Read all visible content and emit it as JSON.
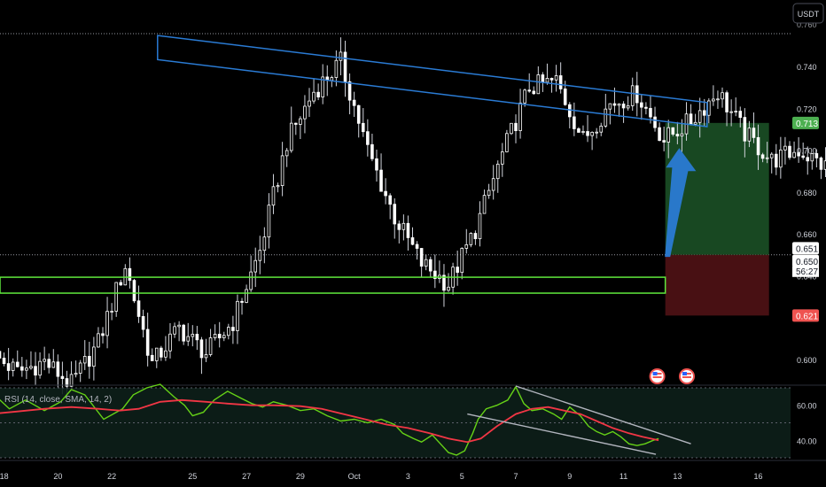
{
  "currency_button": "USDT",
  "chart_data": [
    {
      "type": "candlestick",
      "quote_currency": "USDT",
      "y_ticks": [
        0.6,
        0.62,
        0.64,
        0.66,
        0.68,
        0.7,
        0.72,
        0.74
      ],
      "y_tick_labels": [
        "0.600",
        "0.620",
        "0.640",
        "0.660",
        "0.680",
        "0.700",
        "0.720",
        "0.740"
      ],
      "top_tick_label": "0.760",
      "ylim": [
        0.589,
        0.767
      ],
      "x_ticks": [
        {
          "label": "18",
          "day": 18
        },
        {
          "label": "20",
          "day": 20
        },
        {
          "label": "22",
          "day": 22
        },
        {
          "label": "25",
          "day": 25
        },
        {
          "label": "27",
          "day": 27
        },
        {
          "label": "29",
          "day": 29
        },
        {
          "label": "Oct",
          "day": 31
        },
        {
          "label": "3",
          "day": 33
        },
        {
          "label": "5",
          "day": 35
        },
        {
          "label": "7",
          "day": 37
        },
        {
          "label": "9",
          "day": 39
        },
        {
          "label": "11",
          "day": 41
        },
        {
          "label": "13",
          "day": 43
        },
        {
          "label": "16",
          "day": 46
        }
      ],
      "xlim": [
        17.85,
        47.2
      ],
      "candles_per_day": 6,
      "start_day": 17.5,
      "candle_anchors": [
        [
          0,
          0.603
        ],
        [
          6,
          0.594
        ],
        [
          12,
          0.599
        ],
        [
          18,
          0.588
        ],
        [
          24,
          0.608
        ],
        [
          30,
          0.645
        ],
        [
          36,
          0.598
        ],
        [
          42,
          0.615
        ],
        [
          48,
          0.603
        ],
        [
          54,
          0.618
        ],
        [
          60,
          0.652
        ],
        [
          66,
          0.704
        ],
        [
          72,
          0.728
        ],
        [
          78,
          0.742
        ],
        [
          84,
          0.7
        ],
        [
          90,
          0.668
        ],
        [
          96,
          0.646
        ],
        [
          102,
          0.636
        ],
        [
          108,
          0.662
        ],
        [
          114,
          0.698
        ],
        [
          120,
          0.73
        ],
        [
          126,
          0.733
        ],
        [
          132,
          0.705
        ],
        [
          138,
          0.722
        ],
        [
          144,
          0.727
        ],
        [
          150,
          0.705
        ],
        [
          156,
          0.714
        ],
        [
          162,
          0.728
        ],
        [
          168,
          0.708
        ],
        [
          174,
          0.695
        ],
        [
          180,
          0.7
        ],
        [
          186,
          0.692
        ],
        [
          192,
          0.686
        ],
        [
          198,
          0.7
        ],
        [
          204,
          0.68
        ],
        [
          210,
          0.662
        ],
        [
          216,
          0.655
        ],
        [
          222,
          0.643
        ],
        [
          228,
          0.637
        ],
        [
          234,
          0.642
        ],
        [
          240,
          0.637
        ],
        [
          246,
          0.656
        ],
        [
          252,
          0.688
        ],
        [
          258,
          0.716
        ],
        [
          264,
          0.726
        ],
        [
          270,
          0.703
        ],
        [
          276,
          0.708
        ],
        [
          282,
          0.704
        ],
        [
          288,
          0.68
        ],
        [
          294,
          0.708
        ],
        [
          300,
          0.7
        ],
        [
          306,
          0.682
        ],
        [
          312,
          0.668
        ],
        [
          318,
          0.66
        ],
        [
          324,
          0.656
        ],
        [
          330,
          0.648
        ],
        [
          336,
          0.645
        ],
        [
          342,
          0.65
        ]
      ],
      "last_price": 0.65,
      "countdown": "56:27",
      "price_markers": [
        {
          "label": "0.713",
          "value": 0.713,
          "color": "#4caf50"
        },
        {
          "label": "0.651",
          "value": 0.651,
          "color": "#ffffff"
        },
        {
          "label": "0.650",
          "value": 0.65,
          "color": "#ffffff"
        },
        {
          "label": "0.621",
          "value": 0.621,
          "color": "#ef5350"
        }
      ],
      "drawings": {
        "resistance_channel": {
          "start": {
            "day": 23.7,
            "price": 0.749
          },
          "end": {
            "day": 44.1,
            "price": 0.717
          },
          "width_price": 0.0115,
          "color": "#2a7bd4"
        },
        "support_zone": {
          "start_day": 17.85,
          "end_day": 42.55,
          "price_high": 0.6393,
          "price_low": 0.6317,
          "color": "#5fe83d"
        },
        "long_position": {
          "start_day": 42.55,
          "end_day": 46.4,
          "entry": 0.65,
          "target": 0.713,
          "stop": 0.621
        },
        "arrow": {
          "from": {
            "day": 42.6,
            "price": 0.649
          },
          "to": {
            "day": 43.1,
            "price": 0.701
          },
          "color": "#2a7bd4"
        }
      },
      "event_icons": [
        {
          "day": 42.25
        },
        {
          "day": 43.35
        }
      ]
    },
    {
      "type": "line",
      "indicator": "RSI",
      "legend": "RSI (14, close, SMA, 14, 2)",
      "y_ticks": [
        40,
        60
      ],
      "y_tick_labels": [
        "40.00",
        "60.00"
      ],
      "ylim": [
        29.5,
        71
      ],
      "bands": {
        "upper": 70,
        "middle": 50,
        "lower": 30
      },
      "series": [
        {
          "key": "rsi",
          "color": "#66d217",
          "points": [
            [
              17.5,
              68
            ],
            [
              18.2,
              58
            ],
            [
              18.8,
              63
            ],
            [
              19.5,
              57
            ],
            [
              20.1,
              62
            ],
            [
              20.5,
              69
            ],
            [
              21.0,
              66
            ],
            [
              21.7,
              52
            ],
            [
              22.4,
              58
            ],
            [
              22.8,
              66
            ],
            [
              23.3,
              70
            ],
            [
              23.8,
              72
            ],
            [
              24.3,
              65
            ],
            [
              24.7,
              60
            ],
            [
              25.0,
              54
            ],
            [
              25.4,
              56
            ],
            [
              25.8,
              63
            ],
            [
              26.3,
              68
            ],
            [
              26.8,
              64
            ],
            [
              27.2,
              61
            ],
            [
              27.6,
              59
            ],
            [
              28.0,
              62
            ],
            [
              28.5,
              60
            ],
            [
              29.0,
              57
            ],
            [
              29.5,
              58
            ],
            [
              30.0,
              54
            ],
            [
              30.5,
              51
            ],
            [
              31.0,
              52
            ],
            [
              31.5,
              50
            ],
            [
              32.0,
              52
            ],
            [
              32.5,
              49
            ],
            [
              32.8,
              44
            ],
            [
              33.2,
              41
            ],
            [
              33.5,
              39
            ],
            [
              33.9,
              43
            ],
            [
              34.2,
              38
            ],
            [
              34.5,
              33
            ],
            [
              34.8,
              31.5
            ],
            [
              35.1,
              34
            ],
            [
              35.4,
              44
            ],
            [
              35.6,
              52
            ],
            [
              35.9,
              58
            ],
            [
              36.3,
              60
            ],
            [
              36.7,
              63
            ],
            [
              37.0,
              70.5
            ],
            [
              37.3,
              61
            ],
            [
              37.6,
              57
            ],
            [
              38.0,
              58
            ],
            [
              38.4,
              55
            ],
            [
              38.7,
              52
            ],
            [
              39.0,
              59
            ],
            [
              39.4,
              54
            ],
            [
              39.7,
              48
            ],
            [
              40.0,
              45
            ],
            [
              40.3,
              43
            ],
            [
              40.6,
              45
            ],
            [
              40.9,
              42
            ],
            [
              41.2,
              38
            ],
            [
              41.5,
              37
            ],
            [
              41.8,
              38
            ],
            [
              42.1,
              40
            ],
            [
              42.3,
              41
            ]
          ]
        },
        {
          "key": "rsi_ma",
          "color": "#f23645",
          "points": [
            [
              17.5,
              55
            ],
            [
              18.5,
              56.5
            ],
            [
              19.5,
              58
            ],
            [
              20.5,
              59
            ],
            [
              21.5,
              58
            ],
            [
              22.3,
              57
            ],
            [
              23.0,
              58
            ],
            [
              23.8,
              62
            ],
            [
              24.6,
              63
            ],
            [
              25.5,
              62
            ],
            [
              26.3,
              61
            ],
            [
              27.2,
              60
            ],
            [
              28.0,
              60
            ],
            [
              29.0,
              59.5
            ],
            [
              29.8,
              58
            ],
            [
              30.6,
              55
            ],
            [
              31.4,
              52
            ],
            [
              32.2,
              49
            ],
            [
              33.0,
              47
            ],
            [
              33.8,
              44
            ],
            [
              34.5,
              41
            ],
            [
              35.2,
              39
            ],
            [
              35.7,
              41
            ],
            [
              36.3,
              48
            ],
            [
              37.0,
              55
            ],
            [
              37.6,
              58
            ],
            [
              38.2,
              59
            ],
            [
              38.8,
              57
            ],
            [
              39.4,
              55
            ],
            [
              40.0,
              51
            ],
            [
              40.6,
              47
            ],
            [
              41.2,
              44
            ],
            [
              41.7,
              42
            ],
            [
              42.3,
              40
            ]
          ]
        }
      ],
      "wedge_lines": [
        {
          "start": {
            "day": 37.0,
            "value": 71
          },
          "end": {
            "day": 43.5,
            "value": 38
          }
        },
        {
          "start": {
            "day": 35.2,
            "value": 55
          },
          "end": {
            "day": 42.2,
            "value": 32
          }
        }
      ]
    }
  ]
}
